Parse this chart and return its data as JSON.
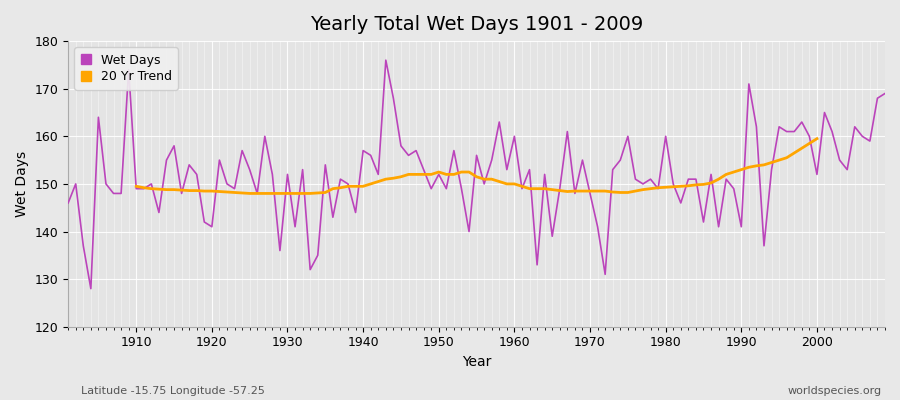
{
  "title": "Yearly Total Wet Days 1901 - 2009",
  "xlabel": "Year",
  "ylabel": "Wet Days",
  "footnote_left": "Latitude -15.75 Longitude -57.25",
  "footnote_right": "worldspecies.org",
  "legend_wet": "Wet Days",
  "legend_trend": "20 Yr Trend",
  "wet_color": "#BB44BB",
  "trend_color": "#FFA500",
  "ylim": [
    120,
    180
  ],
  "yticks": [
    120,
    130,
    140,
    150,
    160,
    170,
    180
  ],
  "years": [
    1901,
    1902,
    1903,
    1904,
    1905,
    1906,
    1907,
    1908,
    1909,
    1910,
    1911,
    1912,
    1913,
    1914,
    1915,
    1916,
    1917,
    1918,
    1919,
    1920,
    1921,
    1922,
    1923,
    1924,
    1925,
    1926,
    1927,
    1928,
    1929,
    1930,
    1931,
    1932,
    1933,
    1934,
    1935,
    1936,
    1937,
    1938,
    1939,
    1940,
    1941,
    1942,
    1943,
    1944,
    1945,
    1946,
    1947,
    1948,
    1949,
    1950,
    1951,
    1952,
    1953,
    1954,
    1955,
    1956,
    1957,
    1958,
    1959,
    1960,
    1961,
    1962,
    1963,
    1964,
    1965,
    1966,
    1967,
    1968,
    1969,
    1970,
    1971,
    1972,
    1973,
    1974,
    1975,
    1976,
    1977,
    1978,
    1979,
    1980,
    1981,
    1982,
    1983,
    1984,
    1985,
    1986,
    1987,
    1988,
    1989,
    1990,
    1991,
    1992,
    1993,
    1994,
    1995,
    1996,
    1997,
    1998,
    1999,
    2000,
    2001,
    2002,
    2003,
    2004,
    2005,
    2006,
    2007,
    2008,
    2009
  ],
  "wet_days": [
    146,
    150,
    137,
    128,
    164,
    150,
    148,
    148,
    174,
    149,
    149,
    150,
    144,
    155,
    158,
    148,
    154,
    152,
    142,
    141,
    155,
    150,
    149,
    157,
    153,
    148,
    160,
    152,
    136,
    152,
    141,
    153,
    132,
    135,
    154,
    143,
    151,
    150,
    144,
    157,
    156,
    152,
    176,
    168,
    158,
    156,
    157,
    153,
    149,
    152,
    149,
    157,
    149,
    140,
    156,
    150,
    155,
    163,
    153,
    160,
    149,
    153,
    133,
    152,
    139,
    149,
    161,
    148,
    155,
    148,
    141,
    131,
    153,
    155,
    160,
    151,
    150,
    151,
    149,
    160,
    150,
    146,
    151,
    151,
    142,
    152,
    141,
    151,
    149,
    141,
    171,
    162,
    137,
    153,
    162,
    161,
    161,
    163,
    160,
    152,
    165,
    161,
    155,
    153,
    162,
    160,
    159,
    168,
    169
  ],
  "trend_years": [
    1910,
    1911,
    1912,
    1913,
    1914,
    1915,
    1916,
    1917,
    1918,
    1919,
    1920,
    1921,
    1922,
    1923,
    1924,
    1925,
    1926,
    1927,
    1928,
    1929,
    1930,
    1931,
    1932,
    1933,
    1934,
    1935,
    1936,
    1937,
    1938,
    1939,
    1940,
    1941,
    1942,
    1943,
    1944,
    1945,
    1946,
    1947,
    1948,
    1949,
    1950,
    1951,
    1952,
    1953,
    1954,
    1955,
    1956,
    1957,
    1958,
    1959,
    1960,
    1961,
    1962,
    1963,
    1964,
    1965,
    1966,
    1967,
    1968,
    1969,
    1970,
    1971,
    1972,
    1973,
    1974,
    1975,
    1976,
    1977,
    1978,
    1979,
    1980,
    1981,
    1982,
    1983,
    1984,
    1985,
    1986,
    1987,
    1988,
    1989,
    1990,
    1991,
    1992,
    1993,
    1994,
    1995,
    1996,
    1997,
    1998,
    1999,
    2000
  ],
  "trend_vals": [
    149.5,
    149.2,
    149.0,
    148.9,
    148.8,
    148.8,
    148.7,
    148.6,
    148.6,
    148.5,
    148.5,
    148.4,
    148.3,
    148.2,
    148.1,
    148.0,
    148.0,
    148.0,
    148.0,
    148.0,
    148.0,
    148.0,
    148.0,
    148.0,
    148.1,
    148.2,
    149.0,
    149.2,
    149.5,
    149.5,
    149.5,
    150.0,
    150.5,
    151.0,
    151.2,
    151.5,
    152.0,
    152.0,
    152.0,
    152.0,
    152.5,
    152.0,
    152.0,
    152.5,
    152.5,
    151.5,
    151.0,
    151.0,
    150.5,
    150.0,
    150.0,
    149.5,
    149.0,
    149.0,
    149.0,
    148.8,
    148.6,
    148.4,
    148.5,
    148.5,
    148.5,
    148.5,
    148.5,
    148.3,
    148.2,
    148.2,
    148.5,
    148.8,
    149.0,
    149.2,
    149.3,
    149.4,
    149.5,
    149.6,
    149.8,
    149.9,
    150.2,
    151.0,
    152.0,
    152.5,
    153.0,
    153.5,
    153.8,
    154.0,
    154.5,
    155.0,
    155.5,
    156.5,
    157.5,
    158.5,
    159.5
  ],
  "bg_color": "#E8E8E8",
  "plot_bg_color": "#E4E4E4",
  "grid_color": "#FFFFFF",
  "title_fontsize": 14,
  "label_fontsize": 10,
  "tick_fontsize": 9,
  "footnote_fontsize": 8,
  "xlim_left": 1901,
  "xlim_right": 2009
}
